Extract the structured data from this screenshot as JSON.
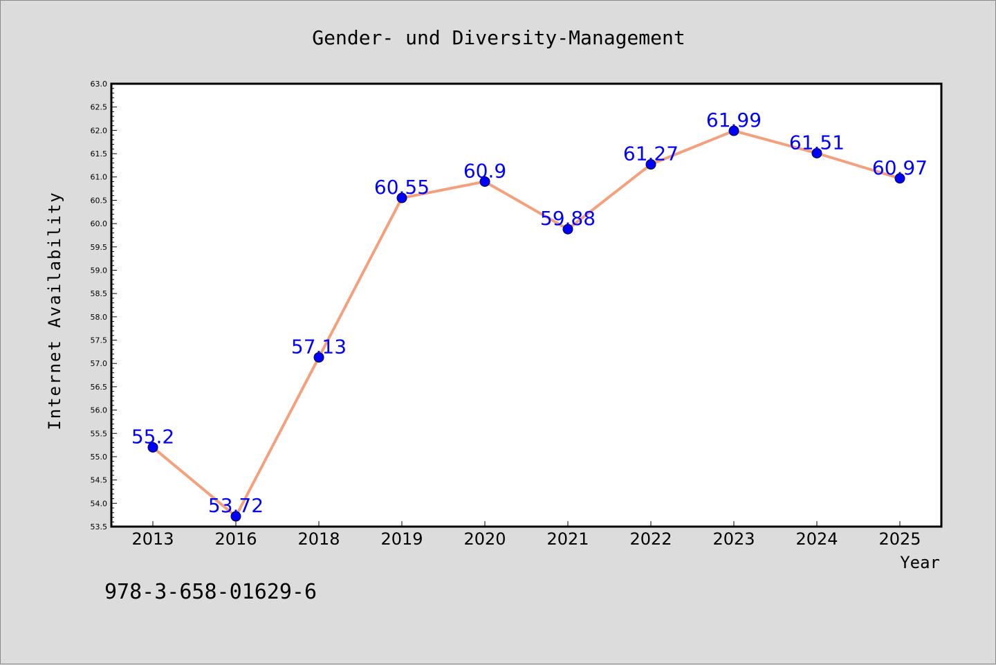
{
  "footer_text": "978-3-658-01629-6",
  "colors": {
    "background": "#dcdcdc",
    "plot_background": "#ffffff",
    "line": "#f4a07c",
    "marker": "#0000ff",
    "data_label": "#0000ff",
    "text": "#000000"
  },
  "chart_data": {
    "type": "line",
    "title": "Gender- und Diversity-Management",
    "xlabel": "Year",
    "ylabel": "Internet Availability",
    "categories": [
      "2013",
      "2016",
      "2018",
      "2019",
      "2020",
      "2021",
      "2022",
      "2023",
      "2024",
      "2025"
    ],
    "series": [
      {
        "values": [
          55.2,
          53.72,
          57.13,
          60.55,
          60.9,
          59.88,
          61.27,
          61.99,
          61.51,
          60.97
        ],
        "data_labels": [
          "55.2",
          "53.72",
          "57.13",
          "60.55",
          "60.9",
          "59.88",
          "61.27",
          "61.99",
          "61.51",
          "60.97"
        ]
      }
    ],
    "ylim": [
      53.5,
      63.0
    ],
    "y_ticks": [
      "53.5",
      "54.0",
      "54.5",
      "55.0",
      "55.5",
      "56.0",
      "56.5",
      "57.0",
      "57.5",
      "58.0",
      "58.5",
      "59.0",
      "59.5",
      "60.0",
      "60.5",
      "61.0",
      "61.5",
      "62.0",
      "62.5",
      "63.0"
    ],
    "grid": false,
    "legend": "none"
  }
}
